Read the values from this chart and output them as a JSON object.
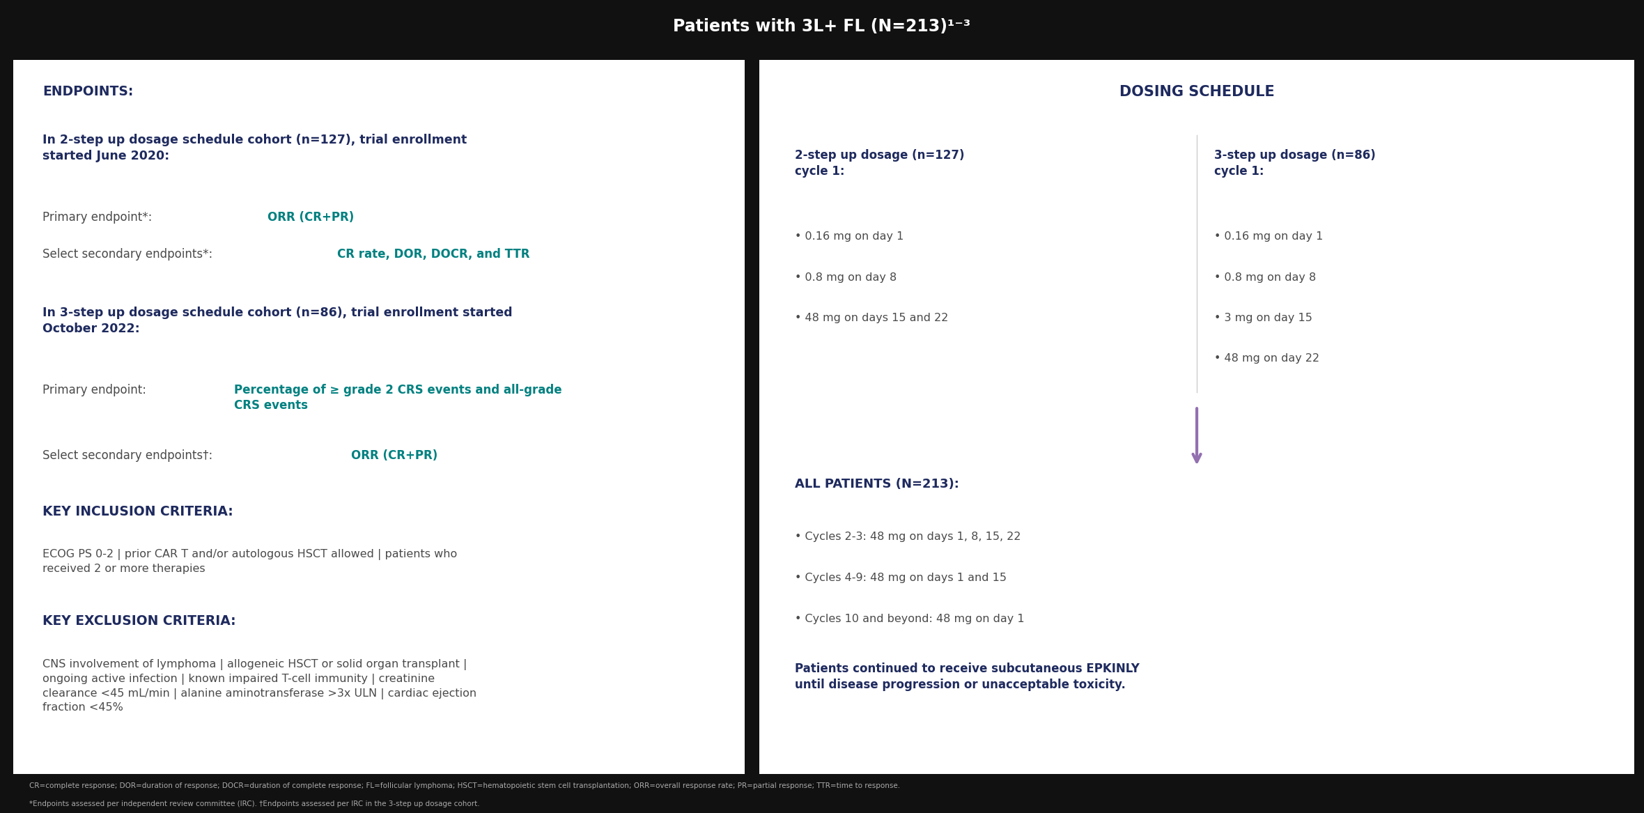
{
  "title": "Patients with 3L+ FL (N=213)¹⁻³",
  "title_bg": "#1e2a5e",
  "title_color": "#ffffff",
  "left_panel_bg": "#ffffff",
  "left_panel_border": "#c8a8d0",
  "right_panel_bg": "#ffffff",
  "right_panel_border": "#c8a8d0",
  "dark_blue": "#1e2a5e",
  "teal": "#008080",
  "gray": "#4a4a4a",
  "endpoints_label": "ENDPOINTS:",
  "endpoints_2step_header": "In 2-step up dosage schedule cohort (n=127), trial enrollment\nstarted June 2020:",
  "endpoints_2step_primary": "Primary endpoint*: ",
  "endpoints_2step_primary_hl": "ORR (CR+PR)",
  "endpoints_2step_secondary": "Select secondary endpoints*: ",
  "endpoints_2step_secondary_hl": "CR rate, DOR, DOCR, and TTR",
  "endpoints_3step_header": "In 3-step up dosage schedule cohort (n=86), trial enrollment started\nOctober 2022:",
  "endpoints_3step_primary": "Primary endpoint: ",
  "endpoints_3step_primary_hl": "Percentage of ≥ grade 2 CRS events and all-grade\nCRS events",
  "endpoints_3step_secondary": "Select secondary endpoints†: ",
  "endpoints_3step_secondary_hl": "ORR (CR+PR)",
  "key_inclusion_label": "KEY INCLUSION CRITERIA:",
  "key_inclusion_text": "ECOG PS 0-2 | prior CAR T and/or autologous HSCT allowed | patients who\nreceived 2 or more therapies",
  "key_exclusion_label": "KEY EXCLUSION CRITERIA:",
  "key_exclusion_text": "CNS involvement of lymphoma | allogeneic HSCT or solid organ transplant |\nongoing active infection | known impaired T-cell immunity | creatinine\nclearance <45 mL/min | alanine aminotransferase >3x ULN | cardiac ejection\nfraction <45%",
  "dosing_title": "DOSING SCHEDULE",
  "dosing_2step_header": "2-step up dosage (n=127)\ncycle 1:",
  "dosing_2step_items": [
    "0.16 mg on day 1",
    "0.8 mg on day 8",
    "48 mg on days 15 and 22"
  ],
  "dosing_3step_header": "3-step up dosage (n=86)\ncycle 1:",
  "dosing_3step_items": [
    "0.16 mg on day 1",
    "0.8 mg on day 8",
    "3 mg on day 15",
    "48 mg on day 22"
  ],
  "dosing_all_header": "ALL PATIENTS (N=213):",
  "dosing_all_items": [
    "Cycles 2-3: 48 mg on days 1, 8, 15, 22",
    "Cycles 4-9: 48 mg on days 1 and 15",
    "Cycles 10 and beyond: 48 mg on day 1"
  ],
  "dosing_all_footer": "Patients continued to receive subcutaneous EPKINLY\nuntil disease progression or unacceptable toxicity.",
  "bottom_note": "CR=complete response; DOR=duration of response; DOCR=duration of complete response; FL=follicular lymphoma; HSCT=hematopoietic stem cell transplantation; ORR=overall response rate; PR=partial response; TTR=time to response.",
  "bottom_note2": "*Endpoints assessed per independent review committee (IRC). †Endpoints assessed per IRC in the 3-step up dosage cohort.",
  "fig_width": 23.6,
  "fig_height": 11.67,
  "dpi": 100
}
